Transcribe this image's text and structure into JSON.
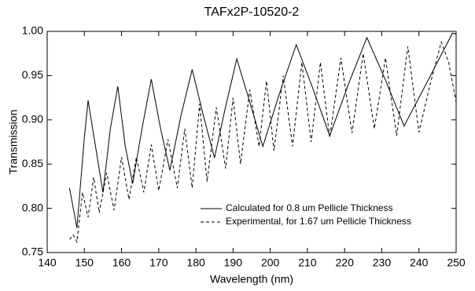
{
  "chart_data": {
    "type": "line",
    "title": "TAFx2P-10520-2",
    "x_label": "Wavelength (nm)",
    "y_label": "Transmission",
    "xlim": [
      140,
      250
    ],
    "xticks": [
      140,
      150,
      160,
      170,
      180,
      190,
      200,
      210,
      220,
      230,
      240,
      250
    ],
    "ylim": [
      0.75,
      1.0
    ],
    "yticks": [
      {
        "value": 0.75,
        "label": "0.75"
      },
      {
        "value": 0.8,
        "label": "0.80"
      },
      {
        "value": 0.85,
        "label": "0.85"
      },
      {
        "value": 0.9,
        "label": "0.90"
      },
      {
        "value": 0.95,
        "label": "0.95"
      },
      {
        "value": 1.0,
        "label": "1.00"
      }
    ],
    "legend": "lower right",
    "series": [
      {
        "name": "Calculated for 0.8 um Pellicle Thickness",
        "color": "#000000",
        "dash": "solid",
        "x": [
          146,
          148,
          150,
          151,
          153,
          155,
          157,
          159,
          161,
          163,
          165.5,
          168,
          170.5,
          173,
          176,
          179,
          182,
          185,
          188,
          191,
          194.5,
          198,
          202.5,
          207,
          211.5,
          216,
          221,
          226,
          231,
          236,
          242.5,
          249,
          250
        ],
        "values": [
          0.823,
          0.778,
          0.88,
          0.922,
          0.87,
          0.818,
          0.89,
          0.938,
          0.87,
          0.828,
          0.89,
          0.946,
          0.89,
          0.843,
          0.905,
          0.957,
          0.905,
          0.857,
          0.915,
          0.969,
          0.92,
          0.87,
          0.93,
          0.985,
          0.935,
          0.882,
          0.94,
          0.993,
          0.945,
          0.893,
          0.945,
          0.998,
          0.997
        ]
      },
      {
        "name": "Experimental, for 1.67 um Pellicle Thickness",
        "color": "#000000",
        "dash": "dashed",
        "x": [
          146,
          147,
          148,
          149.5,
          151,
          152.5,
          154,
          156,
          158,
          160,
          162,
          164,
          166,
          168,
          170,
          172.5,
          175,
          177,
          179,
          181,
          183,
          185.5,
          188,
          190,
          192,
          194.5,
          197,
          199,
          201,
          203.5,
          206,
          208.5,
          211,
          213.5,
          216,
          219,
          222,
          225,
          228,
          231,
          234,
          237,
          240,
          243,
          246,
          248,
          250
        ],
        "values": [
          0.765,
          0.77,
          0.762,
          0.818,
          0.79,
          0.835,
          0.795,
          0.84,
          0.798,
          0.858,
          0.81,
          0.858,
          0.818,
          0.872,
          0.82,
          0.878,
          0.823,
          0.89,
          0.823,
          0.918,
          0.83,
          0.914,
          0.845,
          0.925,
          0.85,
          0.934,
          0.87,
          0.944,
          0.865,
          0.95,
          0.87,
          0.965,
          0.875,
          0.965,
          0.88,
          0.97,
          0.885,
          0.975,
          0.89,
          0.97,
          0.882,
          0.983,
          0.886,
          0.94,
          0.988,
          0.965,
          0.92
        ]
      }
    ]
  }
}
